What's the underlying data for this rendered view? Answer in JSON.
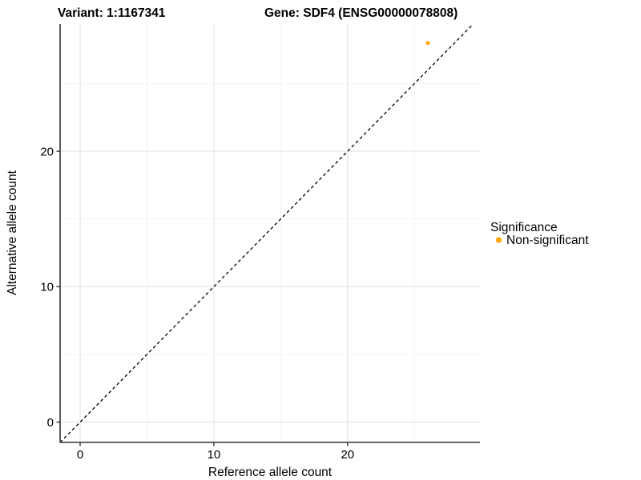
{
  "figure": {
    "title_left": "Variant: 1:1167341",
    "title_right": "Gene: SDF4 (ENSG00000078808)"
  },
  "chart_data": {
    "type": "scatter",
    "title": "Variant: 1:1167341   Gene: SDF4 (ENSG00000078808)",
    "xlabel": "Reference allele count",
    "ylabel": "Alternative allele count",
    "xlim": [
      -1.5,
      29.9
    ],
    "ylim": [
      -1.5,
      29.4
    ],
    "x_major_ticks": [
      0,
      10,
      20
    ],
    "y_major_ticks": [
      0,
      10,
      20
    ],
    "x_minor_ticks": [
      5,
      15,
      25
    ],
    "y_minor_ticks": [
      5,
      15,
      25
    ],
    "grid": "on",
    "identity_line": {
      "type": "dashed",
      "color": "#000000",
      "equation": "y = x",
      "from": [
        -1.5,
        -1.5
      ],
      "to": [
        29.4,
        29.4
      ]
    },
    "series": [
      {
        "name": "Non-significant",
        "color": "#FFA500",
        "points": [
          {
            "x": 26,
            "y": 28
          }
        ]
      }
    ],
    "legend": {
      "title": "Significance",
      "position": "right",
      "items": [
        {
          "label": "Non-significant",
          "color": "#FFA500"
        }
      ]
    }
  },
  "style": {
    "point_color": "#FFA500",
    "axis_line_color": "#333333",
    "major_grid_color": "#e4e4e4",
    "minor_grid_color": "#f1f1f1",
    "identity_line_color": "#000000",
    "background": "#ffffff"
  }
}
